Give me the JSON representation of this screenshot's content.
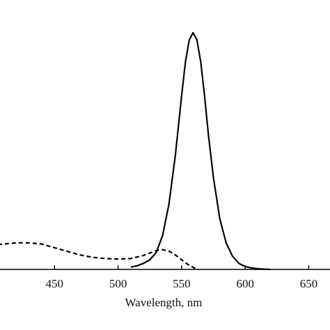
{
  "chart_data": {
    "type": "line",
    "title": "",
    "xlabel": "Wavelength, nm",
    "ylabel": "",
    "xlim": [
      400,
      700
    ],
    "ylim": [
      0,
      1.0
    ],
    "xticks": [
      {
        "value": 450,
        "label": "450"
      },
      {
        "value": 500,
        "label": "500"
      },
      {
        "value": 550,
        "label": "550"
      },
      {
        "value": 600,
        "label": "600"
      },
      {
        "value": 650,
        "label": "650"
      }
    ],
    "grid": false,
    "legend": "none",
    "series": [
      {
        "style": "dashed",
        "color": "#000000",
        "x": [
          400,
          410,
          420,
          430,
          440,
          450,
          460,
          470,
          480,
          490,
          500,
          510,
          520,
          525,
          530,
          535,
          540,
          545,
          550,
          555,
          560,
          563
        ],
        "y": [
          0.1,
          0.105,
          0.11,
          0.11,
          0.105,
          0.09,
          0.075,
          0.06,
          0.05,
          0.045,
          0.043,
          0.045,
          0.058,
          0.068,
          0.078,
          0.082,
          0.076,
          0.06,
          0.04,
          0.02,
          0.006,
          0.0
        ]
      },
      {
        "style": "solid",
        "color": "#000000",
        "x": [
          510,
          515,
          520,
          525,
          530,
          535,
          540,
          545,
          550,
          553,
          556,
          559,
          562,
          565,
          568,
          571,
          575,
          580,
          585,
          590,
          595,
          600,
          605,
          610,
          615,
          620
        ],
        "y": [
          0.01,
          0.015,
          0.025,
          0.04,
          0.07,
          0.14,
          0.27,
          0.47,
          0.72,
          0.86,
          0.95,
          0.98,
          0.95,
          0.86,
          0.72,
          0.56,
          0.38,
          0.21,
          0.11,
          0.055,
          0.025,
          0.012,
          0.006,
          0.003,
          0.001,
          0.0
        ]
      }
    ]
  }
}
